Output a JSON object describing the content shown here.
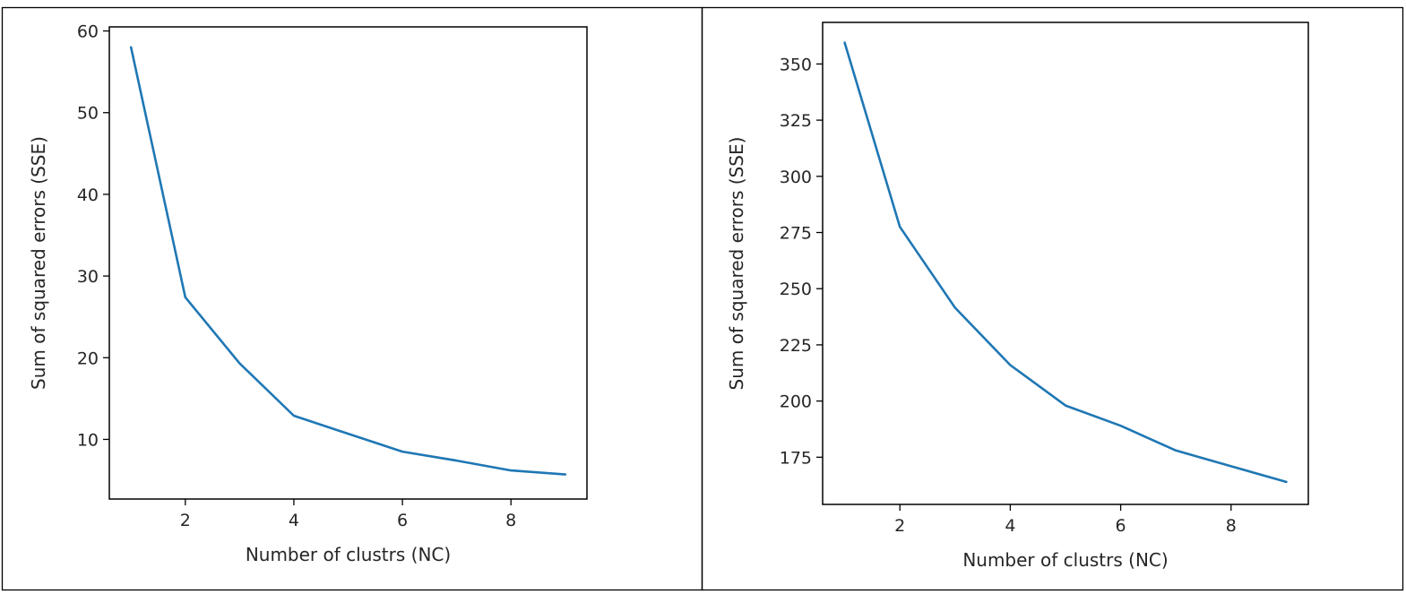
{
  "colors": {
    "line": "#1f77b4",
    "axes": "#000000",
    "background": "#ffffff"
  },
  "chart_data": [
    {
      "type": "line",
      "xlabel": "Number of clustrs (NC)",
      "ylabel": "Sum of squared errors (SSE)",
      "xlim": [
        0.6,
        9.4
      ],
      "ylim": [
        2.7,
        60.5
      ],
      "xticks": [
        2,
        4,
        6,
        8
      ],
      "yticks": [
        10,
        20,
        30,
        40,
        50,
        60
      ],
      "grid": false,
      "series": [
        {
          "x": [
            1,
            2,
            3,
            4,
            5,
            6,
            7,
            8,
            9
          ],
          "y": [
            58.0,
            27.4,
            19.3,
            12.9,
            10.7,
            8.5,
            7.4,
            6.2,
            5.7
          ]
        }
      ]
    },
    {
      "type": "line",
      "xlabel": "Number of clustrs (NC)",
      "ylabel": "Sum of squared errors (SSE)",
      "xlim": [
        0.6,
        9.4
      ],
      "ylim": [
        154.0,
        368.5
      ],
      "xticks": [
        2,
        4,
        6,
        8
      ],
      "yticks": [
        175,
        200,
        225,
        250,
        275,
        300,
        325,
        350
      ],
      "grid": false,
      "series": [
        {
          "x": [
            1,
            2,
            3,
            4,
            5,
            6,
            7,
            8,
            9
          ],
          "y": [
            359.5,
            277.5,
            241.5,
            216.0,
            198.0,
            189.0,
            178.0,
            171.0,
            164.0
          ]
        }
      ]
    }
  ]
}
